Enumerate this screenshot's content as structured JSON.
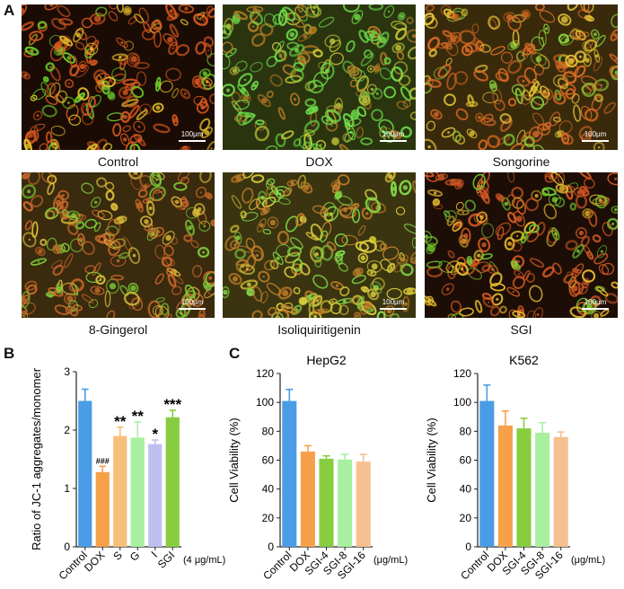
{
  "panels": {
    "a": "A",
    "b": "B",
    "c": "C"
  },
  "micrographs": [
    {
      "caption": "Control",
      "scale_label": "100μm",
      "colors": {
        "bg": "#1a0c05",
        "red": "#d8571f",
        "yellow": "#e7c22b",
        "green": "#6ccf2b"
      },
      "density": [
        0.55,
        0.25,
        0.2
      ]
    },
    {
      "caption": "DOX",
      "scale_label": "100μm",
      "colors": {
        "bg": "#2a3510",
        "red": "#b57a24",
        "yellow": "#c9c83a",
        "green": "#6fe04a"
      },
      "density": [
        0.25,
        0.25,
        0.5
      ]
    },
    {
      "caption": "Songorine",
      "scale_label": "100μm",
      "colors": {
        "bg": "#3a2a0c",
        "red": "#d96a24",
        "yellow": "#e5c637",
        "green": "#88d03c"
      },
      "density": [
        0.45,
        0.35,
        0.2
      ]
    },
    {
      "caption": "8-Gingerol",
      "scale_label": "100μm",
      "colors": {
        "bg": "#3a2a0e",
        "red": "#cc6a2a",
        "yellow": "#dfc23b",
        "green": "#7bd03a"
      },
      "density": [
        0.45,
        0.3,
        0.25
      ]
    },
    {
      "caption": "Isoliquiritigenin",
      "scale_label": "100μm",
      "colors": {
        "bg": "#3a3410",
        "red": "#c8822a",
        "yellow": "#e0d23c",
        "green": "#86e04a"
      },
      "density": [
        0.35,
        0.35,
        0.3
      ]
    },
    {
      "caption": "SGI",
      "scale_label": "100μm",
      "colors": {
        "bg": "#1c0e06",
        "red": "#d65a24",
        "yellow": "#e6bb2f",
        "green": "#74d034"
      },
      "density": [
        0.55,
        0.25,
        0.2
      ]
    }
  ],
  "chart_data": [
    {
      "type": "bar",
      "panel": "B",
      "categories": [
        "Control",
        "DOX",
        "S",
        "G",
        "I",
        "SGI"
      ],
      "values": [
        2.5,
        1.28,
        1.9,
        1.87,
        1.76,
        2.22
      ],
      "errors": [
        0.2,
        0.1,
        0.15,
        0.27,
        0.07,
        0.12
      ],
      "colors": [
        "#4a9ce6",
        "#f7a04a",
        "#f7c07a",
        "#a8f0a0",
        "#c0c0f0",
        "#88cc40"
      ],
      "annotations": [
        "",
        "###",
        "**",
        "**",
        "*",
        "***"
      ],
      "ylabel": "Ratio of JC-1 aggregates/monomer",
      "unit_note": "(4 μg/mL)",
      "ylim": [
        0,
        3
      ],
      "yticks": [
        "0",
        "1",
        "2",
        "3"
      ]
    },
    {
      "type": "bar",
      "panel": "C",
      "title": "HepG2",
      "categories": [
        "Control",
        "DOX",
        "SGI-4",
        "SGI-8",
        "SGI-16"
      ],
      "values": [
        101,
        66,
        61,
        60.5,
        59
      ],
      "errors": [
        8,
        4,
        2,
        3.5,
        5
      ],
      "colors": [
        "#4a9ce6",
        "#f7a04a",
        "#88cc40",
        "#a8f0a0",
        "#f7c090"
      ],
      "ylabel": "Cell Viability (%)",
      "unit_note": "(μg/mL)",
      "ylim": [
        0,
        120
      ],
      "yticks": [
        "0",
        "20",
        "40",
        "60",
        "80",
        "100",
        "120"
      ]
    },
    {
      "type": "bar",
      "panel": "C",
      "title": "K562",
      "categories": [
        "Control",
        "DOX",
        "SGI-4",
        "SGI-8",
        "SGI-16"
      ],
      "values": [
        101,
        84,
        82,
        79,
        76
      ],
      "errors": [
        11,
        10,
        7,
        7,
        3.5
      ],
      "colors": [
        "#4a9ce6",
        "#f7a04a",
        "#88cc40",
        "#a8f0a0",
        "#f7c090"
      ],
      "ylabel": "Cell Viability (%)",
      "unit_note": "(μg/mL)",
      "ylim": [
        0,
        120
      ],
      "yticks": [
        "0",
        "20",
        "40",
        "60",
        "80",
        "100",
        "120"
      ]
    }
  ]
}
